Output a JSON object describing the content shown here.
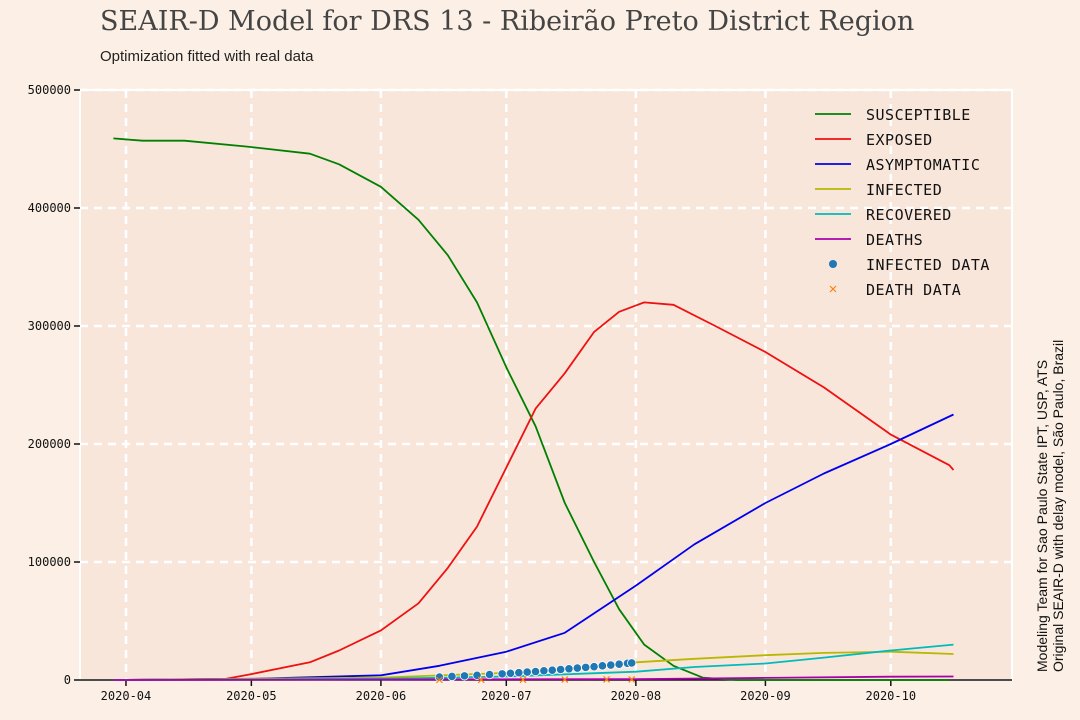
{
  "chart_data": {
    "type": "line",
    "title": "SEAIR-D Model for DRS 13 - Ribeirão Preto District Region",
    "subtitle": "Optimization fitted with real data",
    "side_text": [
      "Modeling Team for Sao Paulo State IPT, USP, ATS",
      "Original SEAIR-D with delay model, São Paulo, Brazil"
    ],
    "x_range": [
      "2020-03-21",
      "2020-10-30"
    ],
    "ylim": [
      0,
      500000
    ],
    "y_ticks": [
      0,
      100000,
      200000,
      300000,
      400000,
      500000
    ],
    "y_tick_labels": [
      "0",
      "100000",
      "200000",
      "300000",
      "400000",
      "500000"
    ],
    "x_ticks": [
      "2020-04-01",
      "2020-05-01",
      "2020-06-01",
      "2020-07-01",
      "2020-08-01",
      "2020-09-01",
      "2020-10-01"
    ],
    "x_tick_labels": [
      "2020-04",
      "2020-05",
      "2020-06",
      "2020-07",
      "2020-08",
      "2020-09",
      "2020-10"
    ],
    "grid": true,
    "legend_position": "top-right",
    "series": [
      {
        "name": "Susceptible",
        "color": "#008000",
        "kind": "line",
        "points": [
          [
            "2020-03-29",
            459000
          ],
          [
            "2020-04-05",
            457000
          ],
          [
            "2020-04-15",
            457000
          ],
          [
            "2020-04-30",
            452000
          ],
          [
            "2020-05-15",
            446000
          ],
          [
            "2020-05-22",
            437000
          ],
          [
            "2020-06-01",
            418000
          ],
          [
            "2020-06-10",
            390000
          ],
          [
            "2020-06-17",
            360000
          ],
          [
            "2020-06-24",
            320000
          ],
          [
            "2020-07-01",
            265000
          ],
          [
            "2020-07-08",
            215000
          ],
          [
            "2020-07-15",
            150000
          ],
          [
            "2020-07-22",
            100000
          ],
          [
            "2020-07-28",
            60000
          ],
          [
            "2020-08-03",
            30000
          ],
          [
            "2020-08-10",
            12000
          ],
          [
            "2020-08-17",
            2000
          ],
          [
            "2020-08-25",
            0
          ],
          [
            "2020-09-15",
            0
          ],
          [
            "2020-10-15",
            0
          ]
        ]
      },
      {
        "name": "Exposed",
        "color": "#ee1111",
        "kind": "line",
        "points": [
          [
            "2020-03-29",
            0
          ],
          [
            "2020-04-25",
            1000
          ],
          [
            "2020-05-01",
            5000
          ],
          [
            "2020-05-15",
            15000
          ],
          [
            "2020-05-22",
            25000
          ],
          [
            "2020-06-01",
            42000
          ],
          [
            "2020-06-10",
            65000
          ],
          [
            "2020-06-17",
            95000
          ],
          [
            "2020-06-24",
            130000
          ],
          [
            "2020-07-01",
            180000
          ],
          [
            "2020-07-08",
            230000
          ],
          [
            "2020-07-15",
            260000
          ],
          [
            "2020-07-22",
            295000
          ],
          [
            "2020-07-28",
            312000
          ],
          [
            "2020-08-03",
            320000
          ],
          [
            "2020-08-10",
            318000
          ],
          [
            "2020-08-20",
            300000
          ],
          [
            "2020-09-01",
            278000
          ],
          [
            "2020-09-15",
            248000
          ],
          [
            "2020-10-01",
            208000
          ],
          [
            "2020-10-15",
            182000
          ],
          [
            "2020-10-16",
            178000
          ]
        ]
      },
      {
        "name": "Asymptomatic",
        "color": "#0000ee",
        "kind": "line",
        "points": [
          [
            "2020-03-29",
            0
          ],
          [
            "2020-05-01",
            1000
          ],
          [
            "2020-06-01",
            4000
          ],
          [
            "2020-06-15",
            12000
          ],
          [
            "2020-07-01",
            24000
          ],
          [
            "2020-07-15",
            40000
          ],
          [
            "2020-08-01",
            80000
          ],
          [
            "2020-08-15",
            115000
          ],
          [
            "2020-09-01",
            150000
          ],
          [
            "2020-09-15",
            175000
          ],
          [
            "2020-10-01",
            200000
          ],
          [
            "2020-10-16",
            225000
          ]
        ]
      },
      {
        "name": "Infected",
        "color": "#b8b800",
        "kind": "line",
        "points": [
          [
            "2020-03-29",
            0
          ],
          [
            "2020-06-01",
            2000
          ],
          [
            "2020-07-01",
            6000
          ],
          [
            "2020-08-01",
            15000
          ],
          [
            "2020-08-15",
            18000
          ],
          [
            "2020-09-01",
            21000
          ],
          [
            "2020-09-15",
            23000
          ],
          [
            "2020-10-01",
            24000
          ],
          [
            "2020-10-16",
            22000
          ]
        ]
      },
      {
        "name": "Recovered",
        "color": "#00bbbb",
        "kind": "line",
        "points": [
          [
            "2020-03-29",
            0
          ],
          [
            "2020-06-01",
            1000
          ],
          [
            "2020-07-01",
            3000
          ],
          [
            "2020-08-01",
            7000
          ],
          [
            "2020-08-15",
            11000
          ],
          [
            "2020-09-01",
            14000
          ],
          [
            "2020-09-15",
            19000
          ],
          [
            "2020-10-01",
            25000
          ],
          [
            "2020-10-16",
            30000
          ]
        ]
      },
      {
        "name": "Deaths",
        "color": "#aa00aa",
        "kind": "line",
        "points": [
          [
            "2020-03-29",
            0
          ],
          [
            "2020-08-01",
            800
          ],
          [
            "2020-09-01",
            1800
          ],
          [
            "2020-10-01",
            2800
          ],
          [
            "2020-10-16",
            3000
          ]
        ]
      },
      {
        "name": "Infected Data",
        "color": "#1f77b4",
        "kind": "scatter",
        "points": [
          [
            "2020-06-15",
            2500
          ],
          [
            "2020-06-18",
            3000
          ],
          [
            "2020-06-21",
            3500
          ],
          [
            "2020-06-24",
            4000
          ],
          [
            "2020-06-27",
            4600
          ],
          [
            "2020-06-30",
            5200
          ],
          [
            "2020-07-02",
            5700
          ],
          [
            "2020-07-04",
            6200
          ],
          [
            "2020-07-06",
            6700
          ],
          [
            "2020-07-08",
            7200
          ],
          [
            "2020-07-10",
            7800
          ],
          [
            "2020-07-12",
            8300
          ],
          [
            "2020-07-14",
            8900
          ],
          [
            "2020-07-16",
            9500
          ],
          [
            "2020-07-18",
            10100
          ],
          [
            "2020-07-20",
            10700
          ],
          [
            "2020-07-22",
            11300
          ],
          [
            "2020-07-24",
            12000
          ],
          [
            "2020-07-26",
            12700
          ],
          [
            "2020-07-28",
            13400
          ],
          [
            "2020-07-30",
            14100
          ],
          [
            "2020-07-31",
            14500
          ]
        ]
      },
      {
        "name": "Death Data",
        "color": "#ff7f0e",
        "kind": "cross",
        "points": [
          [
            "2020-06-15",
            100
          ],
          [
            "2020-06-25",
            150
          ],
          [
            "2020-07-05",
            250
          ],
          [
            "2020-07-15",
            350
          ],
          [
            "2020-07-25",
            450
          ],
          [
            "2020-07-31",
            500
          ]
        ]
      }
    ]
  }
}
